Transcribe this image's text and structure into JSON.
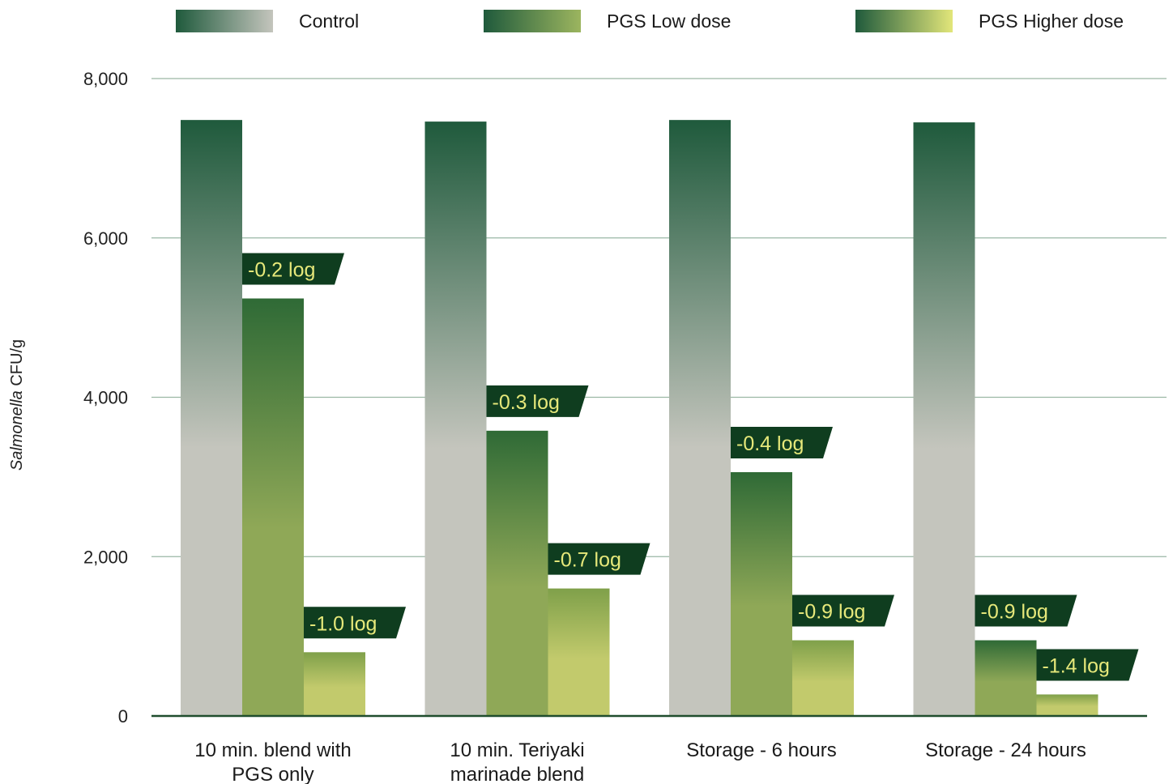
{
  "chart_data": {
    "type": "bar",
    "ylabel_italic": "Salmonella",
    "ylabel_rest": " CFU/g",
    "ylim": [
      0,
      8000
    ],
    "yticks": [
      0,
      2000,
      4000,
      6000,
      8000
    ],
    "ytick_labels": [
      "0",
      "2,000",
      "4,000",
      "6,000",
      "8,000"
    ],
    "grid": true,
    "legend_position": "top",
    "categories": [
      [
        "10 min. blend with",
        "PGS only"
      ],
      [
        "10 min. Teriyaki",
        "marinade blend"
      ],
      [
        "Storage - 6 hours"
      ],
      [
        "Storage - 24 hours"
      ]
    ],
    "series": [
      {
        "name": "Control",
        "values": [
          7480,
          7460,
          7480,
          7450
        ],
        "annotations": [
          "",
          "",
          "",
          ""
        ],
        "gradient": [
          "#1f5a3c",
          "#c4c5bd"
        ]
      },
      {
        "name": "PGS Low dose",
        "values": [
          5240,
          3580,
          3060,
          950
        ],
        "annotations": [
          "-0.2 log",
          "-0.3 log",
          "-0.4 log",
          "-0.9 log"
        ],
        "gradient": [
          "#2f6a36",
          "#8fa857"
        ]
      },
      {
        "name": "PGS Higher dose",
        "values": [
          800,
          1600,
          950,
          270
        ],
        "annotations": [
          "-1.0 log",
          "-0.7 log",
          "-0.9 log",
          "-1.4 log"
        ],
        "gradient": [
          "#7fa04a",
          "#c2ca6c"
        ]
      }
    ]
  },
  "colors": {
    "axis": "#1f4d2d",
    "grid": "#9ab7a4",
    "annotation_bg": "#0f3d1f",
    "annotation_text": "#e6e87a",
    "legend_control": [
      "#1f5a3c",
      "#c4c5bd"
    ],
    "legend_low": [
      "#1f5a3c",
      "#9cb55f"
    ],
    "legend_high": [
      "#1f5a3c",
      "#e2e67a"
    ]
  }
}
